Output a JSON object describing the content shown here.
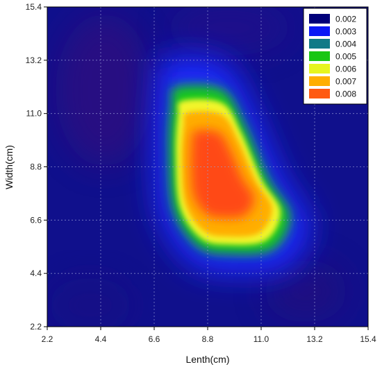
{
  "chart_data": {
    "type": "heatmap",
    "title": "",
    "xlabel": "Lenth(cm)",
    "ylabel": "Width(cm)",
    "xlim": [
      2.2,
      15.4
    ],
    "ylim": [
      2.2,
      15.4
    ],
    "x_ticks": [
      "2.2",
      "4.4",
      "6.6",
      "8.8",
      "11.0",
      "13.2",
      "15.4"
    ],
    "y_ticks": [
      "2.2",
      "4.4",
      "6.6",
      "8.8",
      "11.0",
      "13.2",
      "15.4"
    ],
    "grid": true,
    "legend_position": "top-right",
    "legend": [
      {
        "label": "0.002",
        "color": "#00007a"
      },
      {
        "label": "0.003",
        "color": "#0a18f5"
      },
      {
        "label": "0.004",
        "color": "#117a87"
      },
      {
        "label": "0.005",
        "color": "#19c614"
      },
      {
        "label": "0.006",
        "color": "#e6f51e"
      },
      {
        "label": "0.007",
        "color": "#ffae00"
      },
      {
        "label": "0.008",
        "color": "#ff5a12"
      }
    ],
    "background_value": 0.002,
    "hotspot": {
      "outline_0_005": [
        [
          7.5,
          12.1
        ],
        [
          9.4,
          12.0
        ],
        [
          10.3,
          10.6
        ],
        [
          11.3,
          8.3
        ],
        [
          12.2,
          6.8
        ],
        [
          11.5,
          5.4
        ],
        [
          9.7,
          5.2
        ],
        [
          8.4,
          5.5
        ],
        [
          7.4,
          7.0
        ],
        [
          7.2,
          9.5
        ],
        [
          7.3,
          11.4
        ]
      ],
      "peak": {
        "x": 9.3,
        "y": 8.0,
        "value": 0.008
      }
    }
  }
}
